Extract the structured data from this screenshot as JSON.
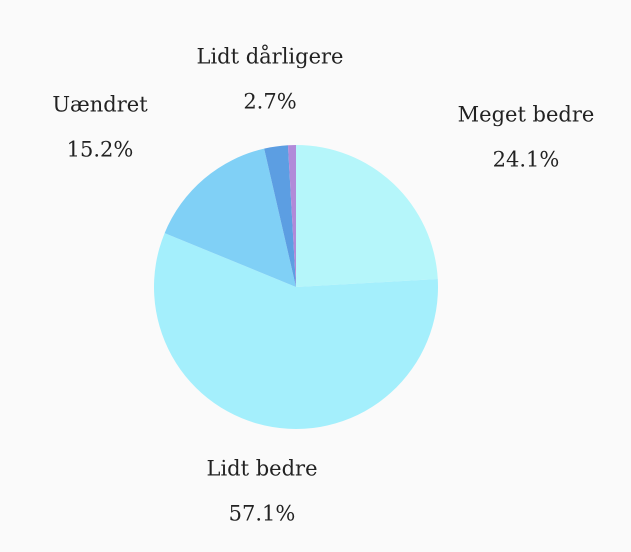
{
  "chart_data": {
    "type": "pie",
    "categories": [
      "Meget bedre",
      "Lidt bedre",
      "Uændret",
      "Lidt dårligere",
      null
    ],
    "values": [
      24.1,
      57.1,
      15.2,
      2.7,
      0.9
    ],
    "value_labels": [
      "24.1%",
      "57.1%",
      "15.2%",
      "2.7%",
      null
    ],
    "colors": [
      "#b5f6fa",
      "#a4effc",
      "#80d0f6",
      "#5c9ee2",
      "#b18ad9"
    ]
  }
}
